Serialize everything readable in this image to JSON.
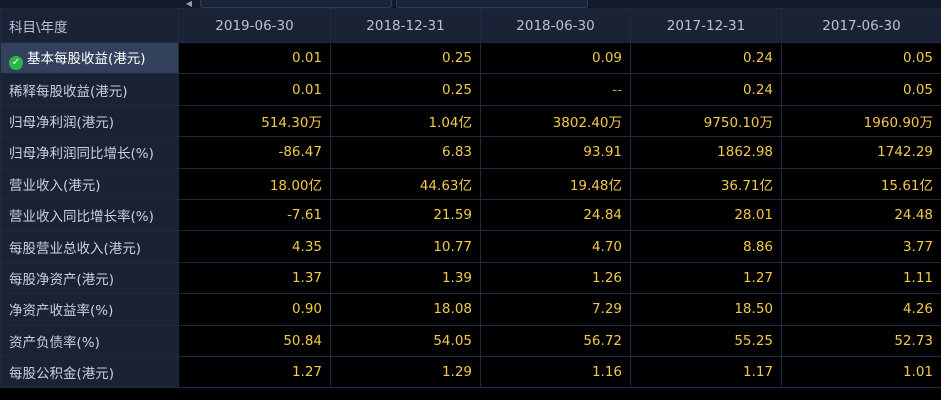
{
  "table": {
    "corner_header": "科目\\年度",
    "columns": [
      "2019-06-30",
      "2018-12-31",
      "2018-06-30",
      "2017-12-31",
      "2017-06-30"
    ],
    "rows": [
      {
        "label": "基本每股收益(港元)",
        "values": [
          "0.01",
          "0.25",
          "0.09",
          "0.24",
          "0.05"
        ],
        "selected": true
      },
      {
        "label": "稀释每股收益(港元)",
        "values": [
          "0.01",
          "0.25",
          "--",
          "0.24",
          "0.05"
        ]
      },
      {
        "label": "归母净利润(港元)",
        "values": [
          "514.30万",
          "1.04亿",
          "3802.40万",
          "9750.10万",
          "1960.90万"
        ]
      },
      {
        "label": "归母净利润同比增长(%)",
        "values": [
          "-86.47",
          "6.83",
          "93.91",
          "1862.98",
          "1742.29"
        ]
      },
      {
        "label": "营业收入(港元)",
        "values": [
          "18.00亿",
          "44.63亿",
          "19.48亿",
          "36.71亿",
          "15.61亿"
        ]
      },
      {
        "label": "营业收入同比增长率(%)",
        "values": [
          "-7.61",
          "21.59",
          "24.84",
          "28.01",
          "24.48"
        ]
      },
      {
        "label": "每股营业总收入(港元)",
        "values": [
          "4.35",
          "10.77",
          "4.70",
          "8.86",
          "3.77"
        ]
      },
      {
        "label": "每股净资产(港元)",
        "values": [
          "1.37",
          "1.39",
          "1.26",
          "1.27",
          "1.11"
        ]
      },
      {
        "label": "净资产收益率(%)",
        "values": [
          "0.90",
          "18.08",
          "7.29",
          "18.50",
          "4.26"
        ]
      },
      {
        "label": "资产负债率(%)",
        "values": [
          "50.84",
          "54.05",
          "56.72",
          "55.25",
          "52.73"
        ]
      },
      {
        "label": "每股公积金(港元)",
        "values": [
          "1.27",
          "1.29",
          "1.16",
          "1.17",
          "1.01"
        ]
      }
    ]
  },
  "colors": {
    "value_text": "#f2c94a",
    "label_bg": "#1a2336",
    "selected_bg": "#33415d",
    "check_icon": "#2fb44a"
  },
  "icons": {
    "selected_row": "check-icon",
    "top_scroll": "scroll-left-icon"
  }
}
